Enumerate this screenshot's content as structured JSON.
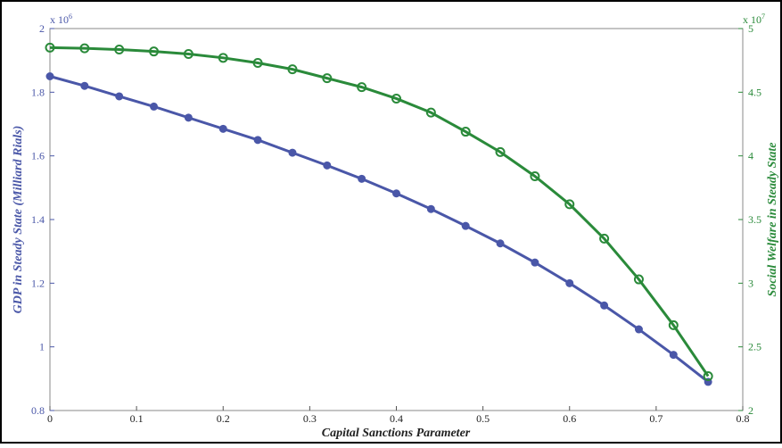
{
  "chart_data": {
    "type": "line",
    "x_label": "Capital Sanctions Parameter",
    "y_label": "GDP in Steady State (Milliard Rials)",
    "y2_label": "Social Welfare in Steady State",
    "y_multiplier": {
      "base": "x 10",
      "exponent": "6"
    },
    "y2_multiplier": {
      "base": "x 10",
      "exponent": "7"
    },
    "x": [
      0,
      0.04,
      0.08,
      0.12,
      0.16,
      0.2,
      0.24,
      0.28,
      0.32,
      0.36,
      0.4,
      0.44,
      0.48,
      0.52,
      0.56,
      0.6,
      0.64,
      0.68,
      0.72,
      0.76
    ],
    "xlim": [
      0,
      0.8
    ],
    "xticks": [
      0,
      0.1,
      0.2,
      0.3,
      0.4,
      0.5,
      0.6,
      0.7,
      0.8
    ],
    "ylim": [
      0.8,
      2
    ],
    "yticks": [
      0.8,
      1,
      1.2,
      1.4,
      1.6,
      1.8,
      2
    ],
    "y2lim": [
      2,
      5
    ],
    "y2ticks": [
      2,
      2.5,
      3,
      3.5,
      4,
      4.5,
      5
    ],
    "series": [
      {
        "color": "#4a57a8",
        "values": [
          1.85,
          1.82,
          1.787,
          1.755,
          1.72,
          1.685,
          1.65,
          1.61,
          1.57,
          1.528,
          1.482,
          1.433,
          1.38,
          1.325,
          1.265,
          1.2,
          1.13,
          1.055,
          0.975,
          0.89
        ]
      },
      {
        "color": "#2a8a3a",
        "axis": "y2",
        "values": [
          4.85,
          4.845,
          4.835,
          4.82,
          4.8,
          4.77,
          4.73,
          4.68,
          4.61,
          4.54,
          4.45,
          4.34,
          4.19,
          4.03,
          3.84,
          3.62,
          3.35,
          3.03,
          2.67,
          2.27
        ]
      }
    ]
  }
}
